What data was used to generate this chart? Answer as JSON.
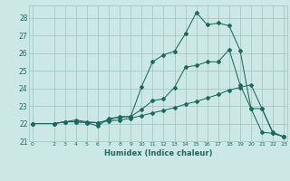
{
  "xlabel": "Humidex (Indice chaleur)",
  "bg_color": "#cce8e5",
  "grid_color": "#9dc4c0",
  "line_color": "#1a6b5e",
  "xlim": [
    -0.3,
    23.3
  ],
  "ylim": [
    21.0,
    28.7
  ],
  "xticks": [
    0,
    2,
    3,
    4,
    5,
    6,
    7,
    8,
    9,
    10,
    11,
    12,
    13,
    14,
    15,
    16,
    17,
    18,
    19,
    20,
    21,
    22,
    23
  ],
  "yticks": [
    21,
    22,
    23,
    24,
    25,
    26,
    27,
    28
  ],
  "line_top_x": [
    0,
    2,
    3,
    4,
    5,
    6,
    7,
    8,
    9,
    10,
    11,
    12,
    13,
    14,
    15,
    16,
    17,
    18,
    19,
    20,
    21,
    22,
    23
  ],
  "line_top_y": [
    22.0,
    22.0,
    22.1,
    22.1,
    22.05,
    21.85,
    22.3,
    22.35,
    22.4,
    24.1,
    25.5,
    25.9,
    26.1,
    27.1,
    28.3,
    27.6,
    27.7,
    27.55,
    26.15,
    22.85,
    22.85,
    21.5,
    21.25
  ],
  "line_mid_x": [
    0,
    2,
    3,
    4,
    5,
    6,
    7,
    8,
    9,
    10,
    11,
    12,
    13,
    14,
    15,
    16,
    17,
    18,
    19,
    20,
    21,
    22,
    23
  ],
  "line_mid_y": [
    22.0,
    22.0,
    22.1,
    22.1,
    22.05,
    22.05,
    22.2,
    22.4,
    22.4,
    22.8,
    23.3,
    23.4,
    24.05,
    25.2,
    25.3,
    25.5,
    25.5,
    26.2,
    24.2,
    22.85,
    21.5,
    21.45,
    21.25
  ],
  "line_bot_x": [
    0,
    2,
    3,
    4,
    5,
    6,
    7,
    8,
    9,
    10,
    11,
    12,
    13,
    14,
    15,
    16,
    17,
    18,
    19,
    20,
    21,
    22,
    23
  ],
  "line_bot_y": [
    22.0,
    22.0,
    22.1,
    22.2,
    22.1,
    22.05,
    22.15,
    22.2,
    22.3,
    22.45,
    22.6,
    22.75,
    22.9,
    23.1,
    23.25,
    23.45,
    23.65,
    23.9,
    24.05,
    24.2,
    22.85,
    21.45,
    21.25
  ]
}
